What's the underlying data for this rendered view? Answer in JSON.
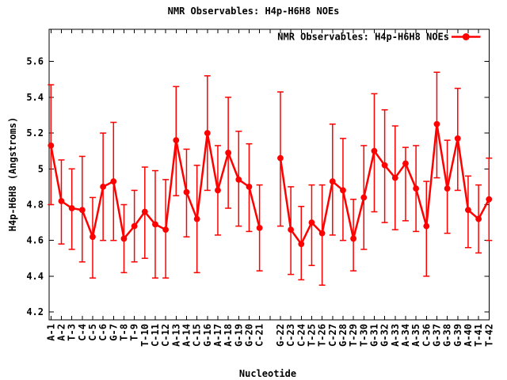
{
  "page": {
    "background": "#ffffff"
  },
  "chart_data": {
    "type": "line",
    "title": "NMR Observables: H4p-H6H8 NOEs",
    "xlabel": "Nucleotide",
    "ylabel": "H4p-H6H8 (Angstroms)",
    "legend": {
      "label": "NMR Observables: H4p-H6H8 NOEs",
      "position": "top-right-inside"
    },
    "color": "#ff0000",
    "axis_color": "#000000",
    "grid": false,
    "error_bars": true,
    "marker": "filled-circle",
    "ylim": [
      4.16,
      5.78
    ],
    "y_ticks": [
      {
        "v": 4.2,
        "label": "4.2"
      },
      {
        "v": 4.4,
        "label": "4.4"
      },
      {
        "v": 4.6,
        "label": "4.6"
      },
      {
        "v": 4.8,
        "label": "4.8"
      },
      {
        "v": 5.0,
        "label": "5"
      },
      {
        "v": 5.2,
        "label": "5.2"
      },
      {
        "v": 5.4,
        "label": "5.4"
      },
      {
        "v": 5.6,
        "label": "5.6"
      }
    ],
    "gap_after_index": 20,
    "points": [
      {
        "label": "A-1",
        "value": 5.13,
        "lo": 4.8,
        "hi": 5.47
      },
      {
        "label": "A-2",
        "value": 4.82,
        "lo": 4.58,
        "hi": 5.05
      },
      {
        "label": "T-3",
        "value": 4.78,
        "lo": 4.55,
        "hi": 5.0
      },
      {
        "label": "C-4",
        "value": 4.77,
        "lo": 4.48,
        "hi": 5.07
      },
      {
        "label": "C-5",
        "value": 4.62,
        "lo": 4.39,
        "hi": 4.84
      },
      {
        "label": "C-6",
        "value": 4.9,
        "lo": 4.6,
        "hi": 5.2
      },
      {
        "label": "G-7",
        "value": 4.93,
        "lo": 4.6,
        "hi": 5.26
      },
      {
        "label": "T-8",
        "value": 4.61,
        "lo": 4.42,
        "hi": 4.8
      },
      {
        "label": "T-9",
        "value": 4.68,
        "lo": 4.48,
        "hi": 4.88
      },
      {
        "label": "T-10",
        "value": 4.76,
        "lo": 4.5,
        "hi": 5.01
      },
      {
        "label": "C-11",
        "value": 4.69,
        "lo": 4.39,
        "hi": 4.99
      },
      {
        "label": "C-12",
        "value": 4.66,
        "lo": 4.39,
        "hi": 4.94
      },
      {
        "label": "A-13",
        "value": 5.16,
        "lo": 4.85,
        "hi": 5.46
      },
      {
        "label": "A-14",
        "value": 4.87,
        "lo": 4.62,
        "hi": 5.11
      },
      {
        "label": "C-15",
        "value": 4.72,
        "lo": 4.42,
        "hi": 5.02
      },
      {
        "label": "G-16",
        "value": 5.2,
        "lo": 4.88,
        "hi": 5.52
      },
      {
        "label": "A-17",
        "value": 4.88,
        "lo": 4.63,
        "hi": 5.13
      },
      {
        "label": "A-18",
        "value": 5.09,
        "lo": 4.78,
        "hi": 5.4
      },
      {
        "label": "G-19",
        "value": 4.94,
        "lo": 4.68,
        "hi": 5.21
      },
      {
        "label": "G-20",
        "value": 4.9,
        "lo": 4.65,
        "hi": 5.14
      },
      {
        "label": "C-21",
        "value": 4.67,
        "lo": 4.43,
        "hi": 4.91
      },
      {
        "label": "G-22",
        "value": 5.06,
        "lo": 4.68,
        "hi": 5.43
      },
      {
        "label": "C-23",
        "value": 4.66,
        "lo": 4.41,
        "hi": 4.9
      },
      {
        "label": "C-24",
        "value": 4.58,
        "lo": 4.38,
        "hi": 4.79
      },
      {
        "label": "T-25",
        "value": 4.7,
        "lo": 4.46,
        "hi": 4.91
      },
      {
        "label": "T-26",
        "value": 4.64,
        "lo": 4.35,
        "hi": 4.91
      },
      {
        "label": "C-27",
        "value": 4.93,
        "lo": 4.63,
        "hi": 5.25
      },
      {
        "label": "G-28",
        "value": 4.88,
        "lo": 4.6,
        "hi": 5.17
      },
      {
        "label": "T-29",
        "value": 4.61,
        "lo": 4.43,
        "hi": 4.83
      },
      {
        "label": "T-30",
        "value": 4.84,
        "lo": 4.55,
        "hi": 5.13
      },
      {
        "label": "G-31",
        "value": 5.1,
        "lo": 4.76,
        "hi": 5.42
      },
      {
        "label": "G-32",
        "value": 5.02,
        "lo": 4.7,
        "hi": 5.33
      },
      {
        "label": "A-33",
        "value": 4.95,
        "lo": 4.66,
        "hi": 5.24
      },
      {
        "label": "A-34",
        "value": 5.03,
        "lo": 4.71,
        "hi": 5.12
      },
      {
        "label": "A-35",
        "value": 4.89,
        "lo": 4.65,
        "hi": 5.13
      },
      {
        "label": "C-36",
        "value": 4.68,
        "lo": 4.4,
        "hi": 4.93
      },
      {
        "label": "G-37",
        "value": 5.25,
        "lo": 4.95,
        "hi": 5.54
      },
      {
        "label": "G-38",
        "value": 4.89,
        "lo": 4.64,
        "hi": 5.16
      },
      {
        "label": "G-39",
        "value": 5.17,
        "lo": 4.88,
        "hi": 5.45
      },
      {
        "label": "A-40",
        "value": 4.77,
        "lo": 4.56,
        "hi": 4.96
      },
      {
        "label": "T-41",
        "value": 4.72,
        "lo": 4.53,
        "hi": 4.91
      },
      {
        "label": "T-42",
        "value": 4.83,
        "lo": 4.6,
        "hi": 5.06
      }
    ]
  }
}
